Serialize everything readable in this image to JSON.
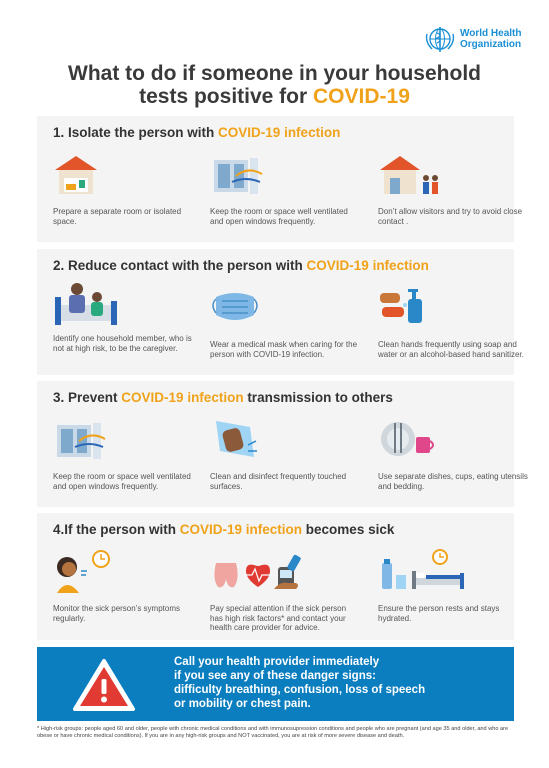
{
  "logo": {
    "line1": "World Health",
    "line2": "Organization"
  },
  "title": {
    "line1": "What to do if someone in your household",
    "line2_pre": "tests positive for ",
    "line2_hl": "COVID-19"
  },
  "sections": [
    {
      "num": "1. ",
      "pre": "Isolate the person with ",
      "hl": "COVID-19 infection",
      "post": "",
      "items": [
        {
          "icon": "house-room-icon",
          "text": "Prepare a separate room or isolated space."
        },
        {
          "icon": "ventilated-window-icon",
          "text": "Keep the room or space well ventilated and open windows frequently."
        },
        {
          "icon": "no-visitors-icon",
          "text": "Don’t allow visitors and try to avoid close contact ."
        }
      ]
    },
    {
      "num": "2. ",
      "pre": "Reduce contact with the person with ",
      "hl": "COVID-19 infection",
      "post": "",
      "items": [
        {
          "icon": "caregiver-icon",
          "text": "Identify one household member, who is not at high risk, to be the caregiver."
        },
        {
          "icon": "medical-mask-icon",
          "text": "Wear a medical mask when caring for the person with COVID-19 infection."
        },
        {
          "icon": "hand-washing-icon",
          "text": "Clean hands frequently using soap and water or an alcohol-based hand sanitizer."
        }
      ]
    },
    {
      "num": "3. ",
      "pre": "Prevent ",
      "hl": "COVID-19 infection",
      "post": " transmission to others",
      "items": [
        {
          "icon": "ventilated-window-icon",
          "text": "Keep the room or space well ventilated and open windows frequently."
        },
        {
          "icon": "disinfect-surface-icon",
          "text": "Clean and disinfect frequently touched surfaces."
        },
        {
          "icon": "separate-dishes-icon",
          "text": "Use separate dishes, cups, eating utensils and bedding."
        }
      ]
    },
    {
      "num": "4.",
      "pre": "If the person with ",
      "hl": "COVID-19 infection",
      "post": " becomes sick",
      "items": [
        {
          "icon": "monitor-symptoms-icon",
          "text": "Monitor the sick person’s symptoms regularly."
        },
        {
          "icon": "high-risk-factors-icon",
          "text": "Pay special attention if the sick person has high risk factors* and contact your health care provider for advice."
        },
        {
          "icon": "rest-hydrate-icon",
          "text": "Ensure the person rests and stays hydrated."
        }
      ]
    }
  ],
  "alert": {
    "line1": "Call your health provider immediately",
    "line2": "if you see any of these danger signs:",
    "line3": "difficulty breathing, confusion, loss of speech",
    "line4": "or mobility or chest pain."
  },
  "footnote": "* High-risk groups: people aged 60 and older, people with chronic medical conditions and with immunosupression conditions and people who are pregnant (and age 35 and older, and who are obese or have chronic medical conditions). If you are in any high-risk groups and NOT vaccinated, you are at risk of more severe disease and death.",
  "colors": {
    "accent": "#f0a21a",
    "brand_blue": "#0b7ec0",
    "panel_bg": "#f4f4f4",
    "alert_red": "#e03a33"
  }
}
